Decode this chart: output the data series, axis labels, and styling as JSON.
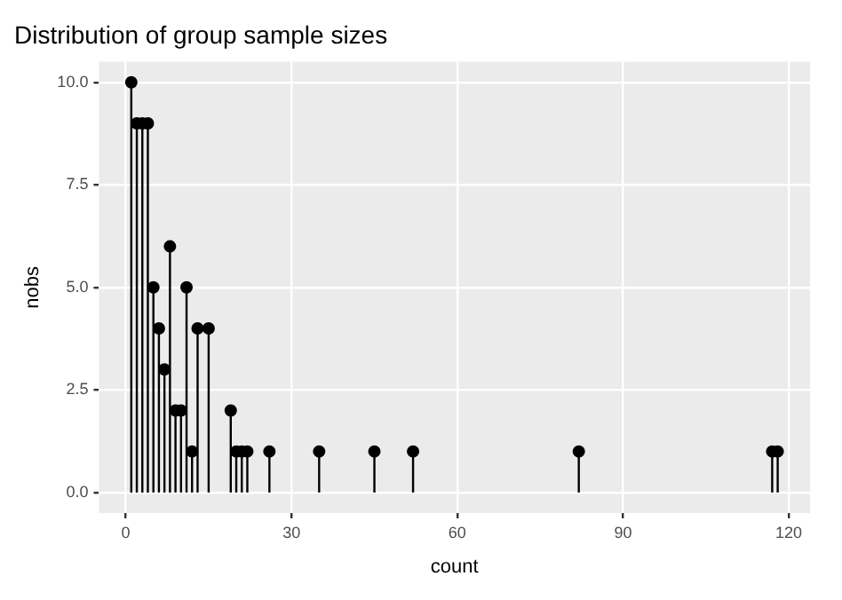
{
  "chart_data": {
    "type": "lollipop",
    "title": "Distribution of group sample sizes",
    "xlabel": "count",
    "ylabel": "nobs",
    "x": [
      1,
      2,
      3,
      4,
      5,
      6,
      7,
      8,
      9,
      10,
      11,
      12,
      13,
      15,
      19,
      20,
      21,
      22,
      26,
      35,
      45,
      52,
      82,
      117,
      118
    ],
    "values": [
      10,
      9,
      9,
      9,
      5,
      4,
      3,
      6,
      2,
      2,
      5,
      1,
      4,
      4,
      2,
      1,
      1,
      1,
      1,
      1,
      1,
      1,
      1,
      1,
      1
    ],
    "color": "#000000",
    "marker": "circle",
    "xlim": [
      -4.85,
      123.85
    ],
    "xticks": [
      0,
      30,
      60,
      90,
      120
    ],
    "ylim": [
      -0.5,
      10.5
    ],
    "yticks": [
      {
        "value": 0,
        "label": "0.0"
      },
      {
        "value": 2.5,
        "label": "2.5"
      },
      {
        "value": 5,
        "label": "5.0"
      },
      {
        "value": 7.5,
        "label": "7.5"
      },
      {
        "value": 10,
        "label": "10.0"
      }
    ],
    "grid": true
  }
}
